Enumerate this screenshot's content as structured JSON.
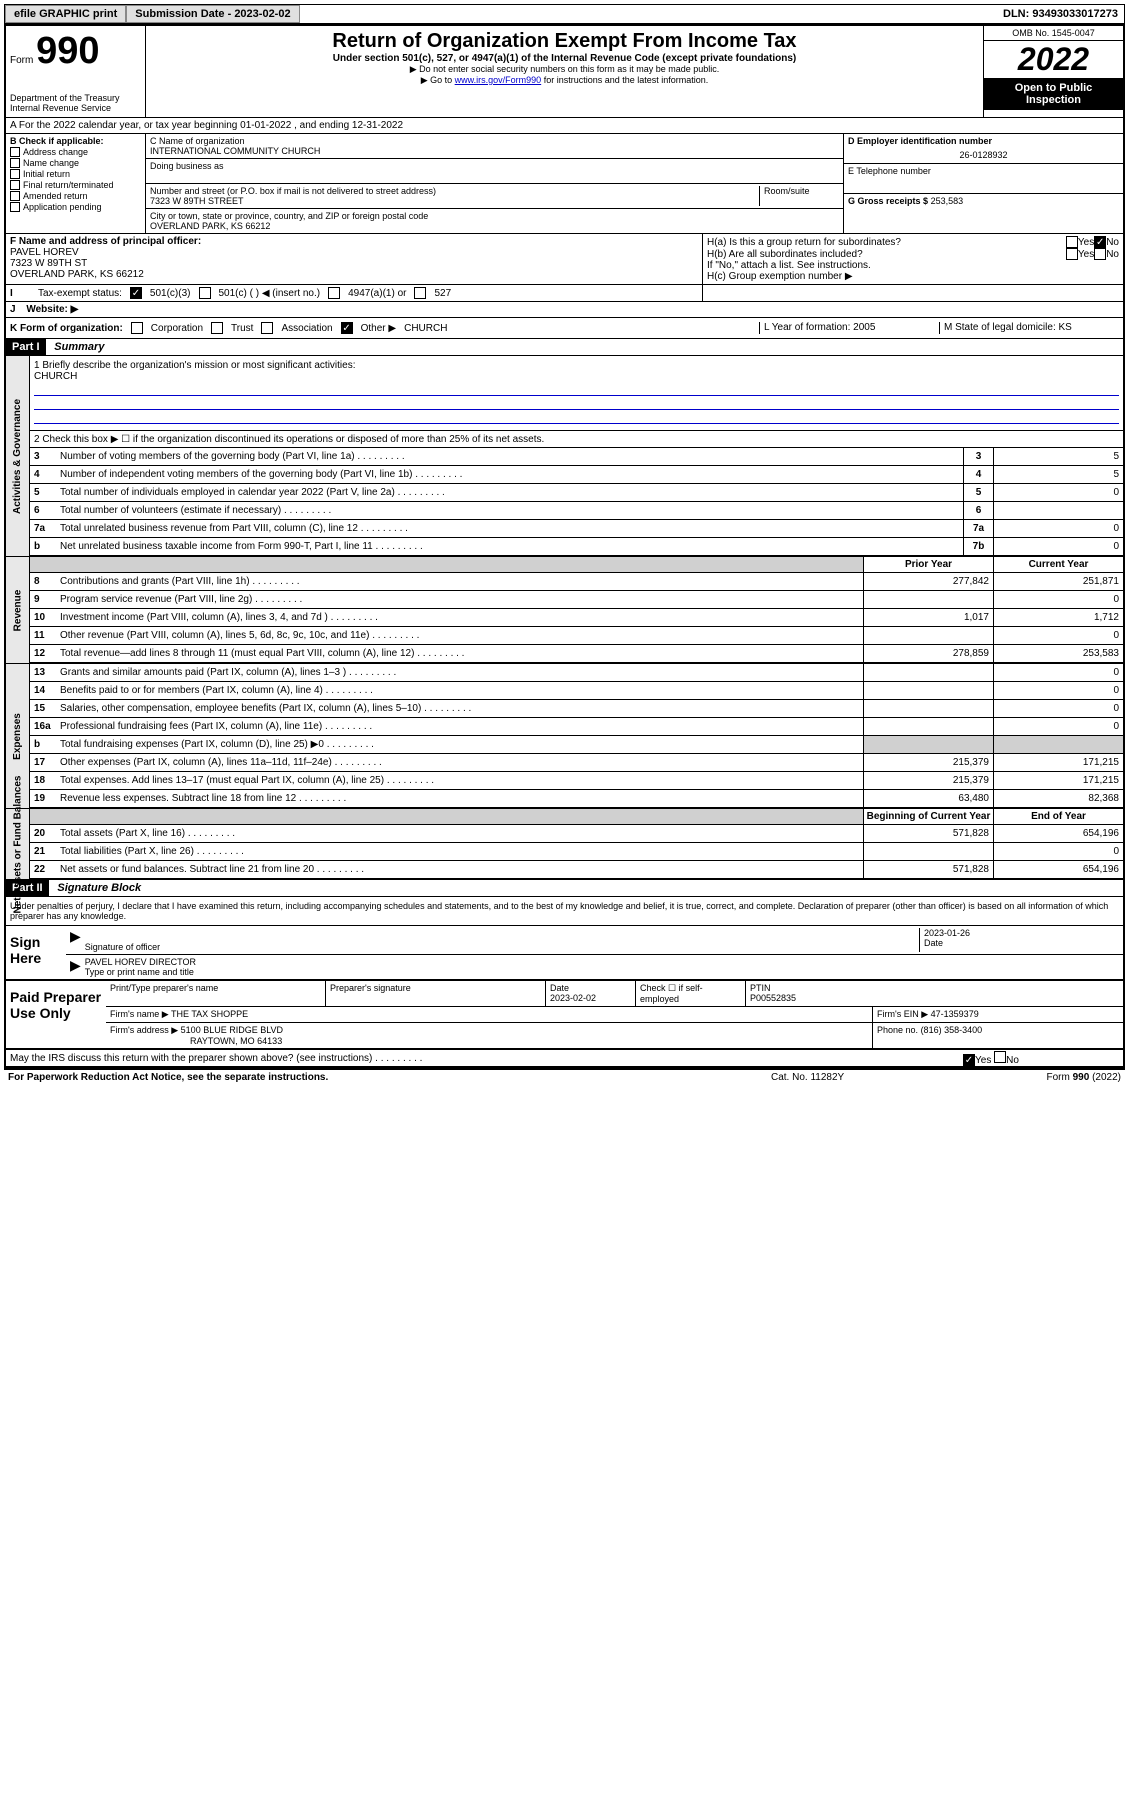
{
  "topbar": {
    "efile": "efile GRAPHIC print",
    "submission_label": "Submission Date - 2023-02-02",
    "dln": "DLN: 93493033017273"
  },
  "header": {
    "form_word": "Form",
    "form_num": "990",
    "dept": "Department of the Treasury",
    "irs": "Internal Revenue Service",
    "title": "Return of Organization Exempt From Income Tax",
    "subtitle": "Under section 501(c), 527, or 4947(a)(1) of the Internal Revenue Code (except private foundations)",
    "instr1": "▶ Do not enter social security numbers on this form as it may be made public.",
    "instr2_pre": "▶ Go to ",
    "instr2_link": "www.irs.gov/Form990",
    "instr2_post": " for instructions and the latest information.",
    "omb": "OMB No. 1545-0047",
    "year": "2022",
    "open": "Open to Public Inspection"
  },
  "row_a": "A For the 2022 calendar year, or tax year beginning 01-01-2022   , and ending 12-31-2022",
  "col_b": {
    "header": "B Check if applicable:",
    "items": [
      "Address change",
      "Name change",
      "Initial return",
      "Final return/terminated",
      "Amended return",
      "Application pending"
    ]
  },
  "col_c": {
    "name_label": "C Name of organization",
    "name": "INTERNATIONAL COMMUNITY CHURCH",
    "dba_label": "Doing business as",
    "addr_label": "Number and street (or P.O. box if mail is not delivered to street address)",
    "room_label": "Room/suite",
    "addr": "7323 W 89TH STREET",
    "city_label": "City or town, state or province, country, and ZIP or foreign postal code",
    "city": "OVERLAND PARK, KS  66212"
  },
  "col_d": {
    "ein_label": "D Employer identification number",
    "ein": "26-0128932",
    "phone_label": "E Telephone number",
    "gross_label": "G Gross receipts $",
    "gross": "253,583"
  },
  "row_f": {
    "label": "F  Name and address of principal officer:",
    "name": "PAVEL HOREV",
    "addr": "7323 W 89TH ST",
    "city": "OVERLAND PARK, KS  66212"
  },
  "row_h": {
    "ha": "H(a)  Is this a group return for subordinates?",
    "hb": "H(b)  Are all subordinates included?",
    "hb_note": "If \"No,\" attach a list. See instructions.",
    "hc": "H(c)  Group exemption number ▶",
    "yes": "Yes",
    "no": "No"
  },
  "row_i": {
    "label": "Tax-exempt status:",
    "opt1": "501(c)(3)",
    "opt2": "501(c) (  ) ◀ (insert no.)",
    "opt3": "4947(a)(1) or",
    "opt4": "527"
  },
  "row_j": "Website: ▶",
  "row_k": {
    "label": "K Form of organization:",
    "opts": [
      "Corporation",
      "Trust",
      "Association",
      "Other ▶"
    ],
    "other_val": "CHURCH",
    "l": "L Year of formation: 2005",
    "m": "M State of legal domicile: KS"
  },
  "part1": {
    "header": "Part I",
    "title": "Summary",
    "line1_label": "1  Briefly describe the organization's mission or most significant activities:",
    "line1_val": "CHURCH",
    "line2": "2   Check this box ▶ ☐  if the organization discontinued its operations or disposed of more than 25% of its net assets.",
    "side_labels": [
      "Activities & Governance",
      "Revenue",
      "Expenses",
      "Net Assets or Fund Balances"
    ],
    "lines_gov": [
      {
        "n": "3",
        "d": "Number of voting members of the governing body (Part VI, line 1a)",
        "box": "3",
        "v": "5"
      },
      {
        "n": "4",
        "d": "Number of independent voting members of the governing body (Part VI, line 1b)",
        "box": "4",
        "v": "5"
      },
      {
        "n": "5",
        "d": "Total number of individuals employed in calendar year 2022 (Part V, line 2a)",
        "box": "5",
        "v": "0"
      },
      {
        "n": "6",
        "d": "Total number of volunteers (estimate if necessary)",
        "box": "6",
        "v": ""
      },
      {
        "n": "7a",
        "d": "Total unrelated business revenue from Part VIII, column (C), line 12",
        "box": "7a",
        "v": "0"
      },
      {
        "n": "b",
        "d": "Net unrelated business taxable income from Form 990-T, Part I, line 11",
        "box": "7b",
        "v": "0"
      }
    ],
    "col_headers": {
      "prior": "Prior Year",
      "current": "Current Year"
    },
    "lines_rev": [
      {
        "n": "8",
        "d": "Contributions and grants (Part VIII, line 1h)",
        "p": "277,842",
        "c": "251,871"
      },
      {
        "n": "9",
        "d": "Program service revenue (Part VIII, line 2g)",
        "p": "",
        "c": "0"
      },
      {
        "n": "10",
        "d": "Investment income (Part VIII, column (A), lines 3, 4, and 7d )",
        "p": "1,017",
        "c": "1,712"
      },
      {
        "n": "11",
        "d": "Other revenue (Part VIII, column (A), lines 5, 6d, 8c, 9c, 10c, and 11e)",
        "p": "",
        "c": "0"
      },
      {
        "n": "12",
        "d": "Total revenue—add lines 8 through 11 (must equal Part VIII, column (A), line 12)",
        "p": "278,859",
        "c": "253,583"
      }
    ],
    "lines_exp": [
      {
        "n": "13",
        "d": "Grants and similar amounts paid (Part IX, column (A), lines 1–3 )",
        "p": "",
        "c": "0"
      },
      {
        "n": "14",
        "d": "Benefits paid to or for members (Part IX, column (A), line 4)",
        "p": "",
        "c": "0"
      },
      {
        "n": "15",
        "d": "Salaries, other compensation, employee benefits (Part IX, column (A), lines 5–10)",
        "p": "",
        "c": "0"
      },
      {
        "n": "16a",
        "d": "Professional fundraising fees (Part IX, column (A), line 11e)",
        "p": "",
        "c": "0"
      },
      {
        "n": "b",
        "d": "Total fundraising expenses (Part IX, column (D), line 25) ▶0",
        "p": "GRAY",
        "c": "GRAY"
      },
      {
        "n": "17",
        "d": "Other expenses (Part IX, column (A), lines 11a–11d, 11f–24e)",
        "p": "215,379",
        "c": "171,215"
      },
      {
        "n": "18",
        "d": "Total expenses. Add lines 13–17 (must equal Part IX, column (A), line 25)",
        "p": "215,379",
        "c": "171,215"
      },
      {
        "n": "19",
        "d": "Revenue less expenses. Subtract line 18 from line 12",
        "p": "63,480",
        "c": "82,368"
      }
    ],
    "col_headers2": {
      "begin": "Beginning of Current Year",
      "end": "End of Year"
    },
    "lines_net": [
      {
        "n": "20",
        "d": "Total assets (Part X, line 16)",
        "p": "571,828",
        "c": "654,196"
      },
      {
        "n": "21",
        "d": "Total liabilities (Part X, line 26)",
        "p": "",
        "c": "0"
      },
      {
        "n": "22",
        "d": "Net assets or fund balances. Subtract line 21 from line 20",
        "p": "571,828",
        "c": "654,196"
      }
    ]
  },
  "part2": {
    "header": "Part II",
    "title": "Signature Block",
    "decl": "Under penalties of perjury, I declare that I have examined this return, including accompanying schedules and statements, and to the best of my knowledge and belief, it is true, correct, and complete. Declaration of preparer (other than officer) is based on all information of which preparer has any knowledge."
  },
  "sign": {
    "label": "Sign Here",
    "sig_label": "Signature of officer",
    "date": "2023-01-26",
    "date_label": "Date",
    "name": "PAVEL HOREV DIRECTOR",
    "name_label": "Type or print name and title"
  },
  "prep": {
    "label": "Paid Preparer Use Only",
    "h1": "Print/Type preparer's name",
    "h2": "Preparer's signature",
    "h3": "Date",
    "date": "2023-02-02",
    "h4": "Check ☐ if self-employed",
    "h5": "PTIN",
    "ptin": "P00552835",
    "firm_label": "Firm's name    ▶",
    "firm": "THE TAX SHOPPE",
    "ein_label": "Firm's EIN ▶",
    "ein": "47-1359379",
    "addr_label": "Firm's address ▶",
    "addr": "5100 BLUE RIDGE BLVD",
    "city": "RAYTOWN, MO  64133",
    "phone_label": "Phone no.",
    "phone": "(816) 358-3400"
  },
  "may_irs": "May the IRS discuss this return with the preparer shown above? (see instructions)",
  "footer": {
    "left": "For Paperwork Reduction Act Notice, see the separate instructions.",
    "mid": "Cat. No. 11282Y",
    "right_pre": "Form ",
    "right_num": "990",
    "right_post": " (2022)"
  }
}
